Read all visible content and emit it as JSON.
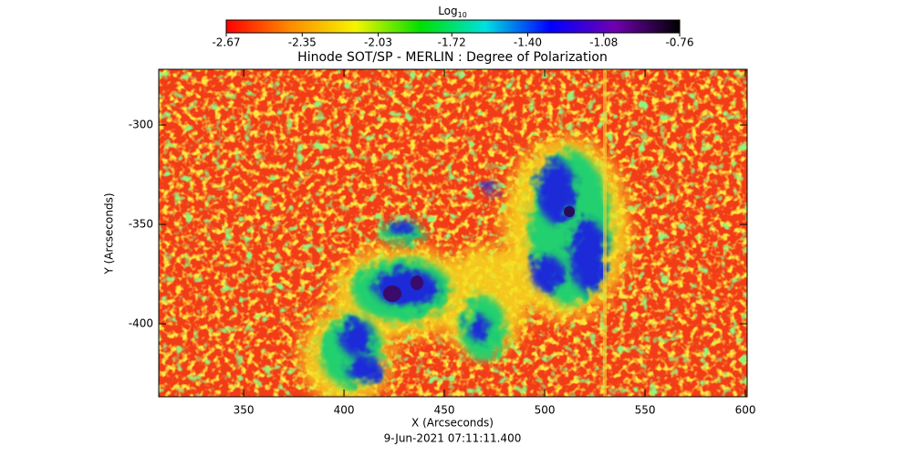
{
  "chart_data": {
    "type": "image",
    "title": "Hinode SOT/SP - MERLIN : Degree of Polarization",
    "x_label": "X (Arcseconds)",
    "y_label": "Y (Arcseconds)",
    "footer": "9-Jun-2021 07:11:11.400",
    "xlim": [
      307.7,
      600.9
    ],
    "xticks": [
      350,
      400,
      450,
      500,
      550,
      600
    ],
    "ylim": [
      -436.7,
      -272
    ],
    "yticks": [
      -300,
      -350,
      -400
    ],
    "colorbar": {
      "label": "Log",
      "label_sub": "10",
      "lim": [
        -2.67,
        -0.76
      ],
      "ticks": [
        -2.67,
        -2.35,
        -2.03,
        -1.72,
        {
          "value": -1.4,
          "label": "-1.40"
        },
        -1.08,
        -0.76
      ],
      "colors": [
        "#ff0000",
        "#ff8c00",
        "#f5f500",
        "#00e000",
        "#00e0e0",
        "#0000ff",
        "#7000b0",
        "#000000"
      ]
    }
  }
}
